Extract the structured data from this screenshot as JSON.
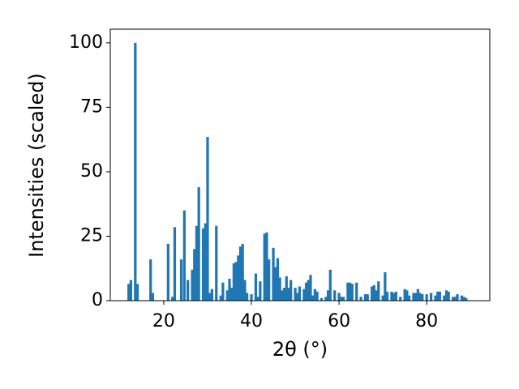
{
  "chart_data": {
    "type": "bar",
    "x_label": "2θ (°)",
    "y_label": "Intensities (scaled)",
    "x": [
      12,
      12.5,
      13.5,
      14,
      17,
      17.5,
      21,
      22,
      22.5,
      24,
      24.7,
      25.5,
      26.5,
      27,
      27.5,
      28,
      29,
      29.5,
      30,
      30.5,
      31,
      32,
      33,
      33.5,
      34.5,
      35,
      35.5,
      36,
      36.5,
      37,
      37.5,
      38,
      38.5,
      39,
      40,
      41,
      41.5,
      42,
      43,
      43.5,
      44,
      45,
      45.5,
      46,
      46.5,
      47,
      47.5,
      48,
      48.5,
      49,
      50,
      50.5,
      51,
      52,
      52.5,
      53,
      53.5,
      54,
      54.5,
      55,
      56,
      57,
      57.5,
      58,
      59,
      60,
      60.5,
      61,
      62,
      62.5,
      63,
      64,
      65,
      66,
      66.5,
      67.5,
      68,
      68.5,
      69,
      70,
      70.5,
      71,
      72,
      72.5,
      73,
      74,
      75,
      75.5,
      76,
      77,
      77.5,
      78,
      78.5,
      79,
      80,
      81,
      82,
      82.5,
      83,
      84,
      84.5,
      85,
      86,
      86.5,
      87,
      88,
      88.5,
      89
    ],
    "values": [
      6.5,
      8,
      100,
      6.5,
      16,
      3,
      22,
      1.5,
      28.5,
      16,
      35,
      8,
      12,
      20,
      29,
      44,
      28,
      30,
      63.5,
      3,
      4.5,
      29,
      2,
      7,
      4,
      8.5,
      5,
      14.5,
      15,
      17.5,
      21,
      22,
      8,
      3,
      2.5,
      10.5,
      1.5,
      7.5,
      26,
      26.5,
      16,
      20.5,
      13,
      16.5,
      9,
      4,
      5,
      9.5,
      5,
      8,
      5,
      3,
      5.5,
      4.5,
      7,
      8,
      10,
      2,
      4.5,
      3.5,
      1,
      1.5,
      4,
      12,
      4,
      3,
      1.5,
      1.5,
      7,
      7,
      6.5,
      7,
      1.5,
      2.5,
      2.5,
      5.5,
      6,
      4,
      7.5,
      2,
      11,
      3.5,
      3.5,
      3,
      3.5,
      1.5,
      4.5,
      4,
      2,
      3,
      3,
      4.5,
      3,
      2.5,
      2.5,
      3,
      2,
      3.5,
      3.5,
      2,
      4,
      3.5,
      1.5,
      1.5,
      2.5,
      2,
      1.5,
      1
    ],
    "color": "#1f77b4",
    "xlim": [
      7.8,
      94.4
    ],
    "xticks": [
      20,
      40,
      60,
      80
    ],
    "ylim": [
      0,
      105.3
    ],
    "yticks": [
      0,
      25,
      50,
      75,
      100
    ]
  }
}
